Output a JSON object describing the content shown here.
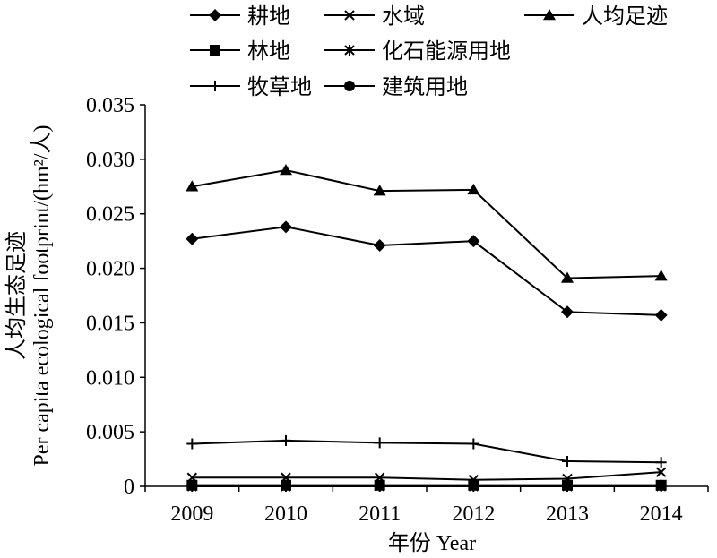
{
  "chart_data": {
    "type": "line",
    "xlabel": "年份 Year",
    "ylabel_cn": "人均生态足迹",
    "ylabel_en": "Per capita ecological footprint/(hm²/人)",
    "categories": [
      "2009",
      "2010",
      "2011",
      "2012",
      "2013",
      "2014"
    ],
    "ylim": [
      0,
      0.035
    ],
    "yticks": [
      "0",
      "0.005",
      "0.010",
      "0.015",
      "0.020",
      "0.025",
      "0.030",
      "0.035"
    ],
    "grid": false,
    "legend_position": "top",
    "series": [
      {
        "name": "耕地",
        "marker": "diamond",
        "values": [
          0.0227,
          0.0238,
          0.0221,
          0.0225,
          0.016,
          0.0157
        ]
      },
      {
        "name": "水域",
        "marker": "x",
        "values": [
          0.0008,
          0.0008,
          0.0008,
          0.0006,
          0.0007,
          0.0013
        ]
      },
      {
        "name": "人均足迹",
        "marker": "triangle",
        "values": [
          0.0275,
          0.029,
          0.0271,
          0.0272,
          0.0191,
          0.0193
        ]
      },
      {
        "name": "林地",
        "marker": "square",
        "values": [
          0.0001,
          0.0001,
          0.0001,
          0.0001,
          0.0001,
          0.0001
        ]
      },
      {
        "name": "化石能源用地",
        "marker": "asterisk",
        "values": [
          0.0,
          0.0,
          0.0,
          0.0,
          0.0,
          0.0
        ]
      },
      {
        "name": "牧草地",
        "marker": "plus",
        "values": [
          0.0039,
          0.0042,
          0.004,
          0.0039,
          0.0023,
          0.0022
        ]
      },
      {
        "name": "建筑用地",
        "marker": "circle",
        "values": [
          0.0001,
          0.0001,
          0.0001,
          0.0001,
          0.0001,
          0.0001
        ]
      }
    ]
  }
}
